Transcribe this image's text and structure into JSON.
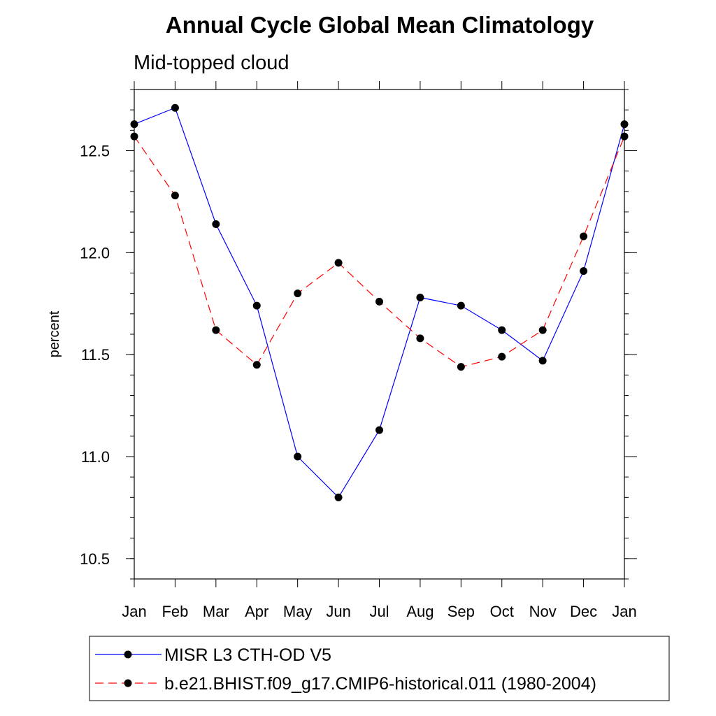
{
  "chart_data": {
    "type": "line",
    "title": "Annual Cycle Global Mean Climatology",
    "subtitle": "Mid-topped cloud",
    "xlabel": "",
    "ylabel": "percent",
    "categories": [
      "Jan",
      "Feb",
      "Mar",
      "Apr",
      "May",
      "Jun",
      "Jul",
      "Aug",
      "Sep",
      "Oct",
      "Nov",
      "Dec",
      "Jan"
    ],
    "ylim": [
      10.4,
      12.8
    ],
    "yticks": [
      10.5,
      11.0,
      11.5,
      12.0,
      12.5
    ],
    "ytick_labels": [
      "10.5",
      "11.0",
      "11.5",
      "12.0",
      "12.5"
    ],
    "grid": false,
    "legend_position": "bottom",
    "series": [
      {
        "name": "MISR L3 CTH-OD V5",
        "color": "#0000ff",
        "line_style": "solid",
        "values": [
          12.63,
          12.71,
          12.14,
          11.74,
          11.0,
          10.8,
          11.13,
          11.78,
          11.74,
          11.62,
          11.47,
          11.91,
          12.63
        ]
      },
      {
        "name": "b.e21.BHIST.f09_g17.CMIP6-historical.011 (1980-2004)",
        "color": "#ff0000",
        "line_style": "dashed",
        "values": [
          12.57,
          12.28,
          11.62,
          11.45,
          11.8,
          11.95,
          11.76,
          11.58,
          11.44,
          11.49,
          11.62,
          12.08,
          12.57
        ]
      }
    ]
  }
}
